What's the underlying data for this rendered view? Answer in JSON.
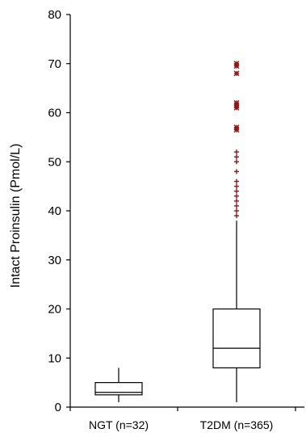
{
  "chart_data": {
    "type": "boxplot",
    "ylabel": "Intact Proinsulin (Pmol/L)",
    "ylim": [
      0,
      80
    ],
    "yticks": [
      0,
      10,
      20,
      30,
      40,
      50,
      60,
      70,
      80
    ],
    "grid": false,
    "categories": [
      "NGT (n=32)",
      "T2DM (n=365)"
    ],
    "boxes": [
      {
        "category": "NGT (n=32)",
        "min": 1,
        "q1": 2.5,
        "median": 3,
        "q3": 5,
        "max": 8,
        "outliers": []
      },
      {
        "category": "T2DM (n=365)",
        "min": 1,
        "q1": 8,
        "median": 12,
        "q3": 20,
        "max": 38,
        "outliers": [
          39,
          40,
          41,
          42,
          43,
          44,
          45,
          46,
          48,
          50,
          51,
          52,
          56.5,
          57,
          61,
          61.5,
          62,
          68,
          69.5,
          70
        ]
      }
    ],
    "outlier_color": "#8b1a1a"
  }
}
